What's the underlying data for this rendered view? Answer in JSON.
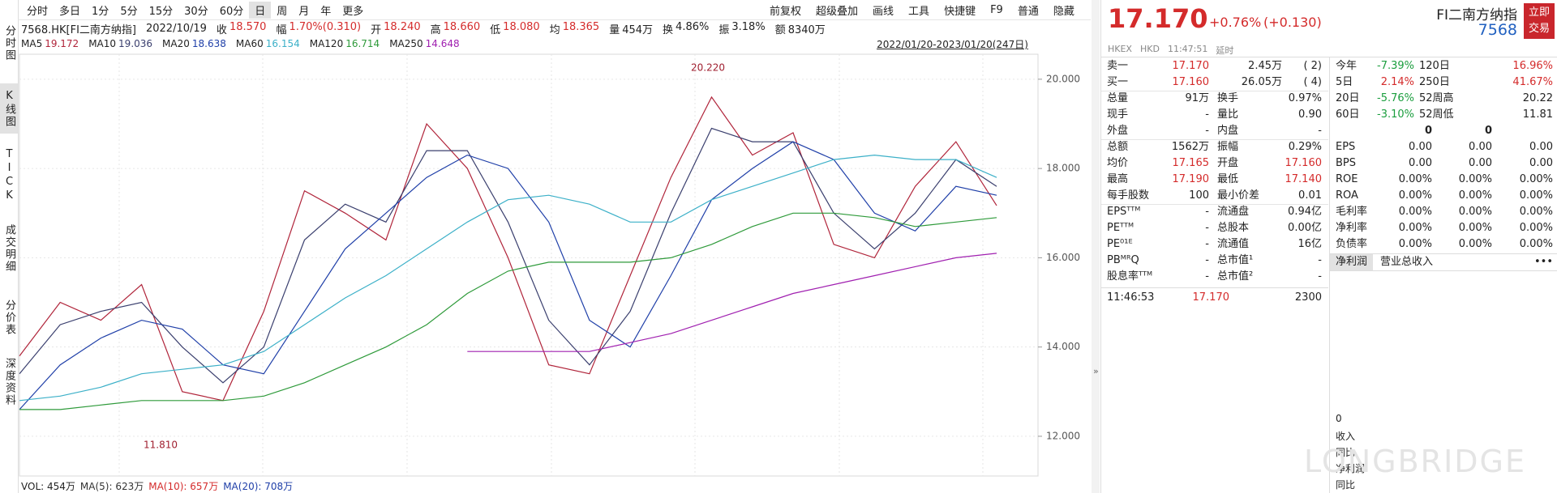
{
  "sidebar": [
    "分时图",
    "K线图",
    "TICK",
    "成交明细",
    "分价表",
    "深度资料"
  ],
  "toolbar": {
    "periods": [
      "分时",
      "多日",
      "1分",
      "5分",
      "15分",
      "30分",
      "60分",
      "日",
      "周",
      "月",
      "年",
      "更多"
    ],
    "tools": [
      "前复权",
      "超级叠加",
      "画线",
      "工具",
      "快捷键",
      "F9",
      "普通",
      "隐藏"
    ]
  },
  "info": {
    "symbol": "7568.HK[FI二南方纳指]",
    "date": "2022/10/19",
    "fields": [
      {
        "label": "收",
        "value": "18.570"
      },
      {
        "label": "幅",
        "value": "1.70%(0.310)"
      },
      {
        "label": "开",
        "value": "18.240"
      },
      {
        "label": "高",
        "value": "18.660"
      },
      {
        "label": "低",
        "value": "18.080"
      },
      {
        "label": "均",
        "value": "18.365"
      },
      {
        "label": "量",
        "value": "454万"
      },
      {
        "label": "换",
        "value": "4.86%"
      },
      {
        "label": "振",
        "value": "3.18%"
      },
      {
        "label": "额",
        "value": "8340万"
      }
    ]
  },
  "ma_values": [
    "19.172",
    "19.036",
    "18.638",
    "16.154",
    "16.714",
    "14.648"
  ],
  "range": "2022/01/20-2023/01/20(247日)",
  "chart_data": {
    "type": "line",
    "categories": [
      null,
      null,
      null,
      null,
      null,
      null,
      null,
      null,
      null,
      null,
      null,
      null,
      null,
      null,
      null,
      null,
      null,
      null,
      null,
      null,
      null,
      null,
      null,
      null,
      null
    ],
    "series": [
      {
        "name": "MA5",
        "color": "#b0243a",
        "values": [
          13.8,
          15.0,
          14.6,
          15.4,
          13.0,
          12.8,
          14.8,
          17.5,
          17.0,
          16.4,
          19.0,
          18.0,
          16.0,
          13.6,
          13.4,
          15.6,
          17.8,
          19.6,
          18.3,
          18.8,
          16.3,
          16.0,
          17.6,
          18.6,
          17.17
        ]
      },
      {
        "name": "MA10",
        "color": "#3a3f6e",
        "values": [
          13.4,
          14.5,
          14.8,
          15.0,
          14.0,
          13.2,
          14.0,
          16.4,
          17.2,
          16.8,
          18.4,
          18.4,
          16.8,
          14.6,
          13.6,
          14.8,
          17.0,
          18.9,
          18.6,
          18.6,
          17.0,
          16.2,
          17.0,
          18.2,
          17.6
        ]
      },
      {
        "name": "MA20",
        "color": "#1f3fa8",
        "values": [
          12.6,
          13.6,
          14.2,
          14.6,
          14.4,
          13.6,
          13.4,
          14.8,
          16.2,
          17.0,
          17.8,
          18.3,
          18.0,
          16.8,
          14.6,
          14.0,
          15.6,
          17.3,
          18.0,
          18.6,
          18.2,
          17.0,
          16.6,
          17.6,
          17.4
        ]
      },
      {
        "name": "MA60",
        "color": "#3cb0c8",
        "values": [
          12.8,
          12.9,
          13.1,
          13.4,
          13.5,
          13.6,
          13.9,
          14.5,
          15.1,
          15.6,
          16.2,
          16.8,
          17.3,
          17.4,
          17.2,
          16.8,
          16.8,
          17.3,
          17.6,
          17.9,
          18.2,
          18.3,
          18.2,
          18.2,
          17.8
        ]
      },
      {
        "name": "MA120",
        "color": "#2e9a3a",
        "values": [
          12.6,
          12.6,
          12.7,
          12.8,
          12.8,
          12.8,
          12.9,
          13.2,
          13.6,
          14.0,
          14.5,
          15.2,
          15.7,
          15.9,
          15.9,
          15.9,
          16.0,
          16.3,
          16.7,
          17.0,
          17.0,
          16.9,
          16.7,
          16.8,
          16.9
        ]
      },
      {
        "name": "MA250",
        "color": "#a020b0",
        "values": [
          null,
          null,
          null,
          null,
          null,
          null,
          null,
          null,
          null,
          null,
          null,
          13.9,
          13.9,
          13.9,
          13.9,
          14.1,
          14.3,
          14.6,
          14.9,
          15.2,
          15.4,
          15.6,
          15.8,
          16.0,
          16.1
        ]
      }
    ],
    "ylim": [
      11.11,
      20.56
    ],
    "yticks": [
      {
        "value": 12,
        "label": "12.000"
      },
      {
        "value": 14,
        "label": "14.000"
      },
      {
        "value": 16,
        "label": "16.000"
      },
      {
        "value": 18,
        "label": "18.000"
      },
      {
        "value": 20,
        "label": "20.000"
      }
    ],
    "grid": true,
    "annotations": [
      "20.220",
      "11.810"
    ]
  },
  "volume": [
    "VOL: 454万",
    "MA(5): 623万",
    "MA(10): 657万",
    "MA(20): 708万"
  ],
  "quote": {
    "price": "17.170",
    "change_pct": "+0.76%",
    "change": "(+0.130)",
    "name": "FI二南方纳指",
    "code": "7568",
    "trade_button": "立即交易",
    "meta": [
      "HKEX",
      "HKD",
      "11:47:51",
      "延时"
    ],
    "order_book": [
      [
        "卖一",
        "17.170",
        "2.45万",
        "( 2)"
      ],
      [
        "买一",
        "17.160",
        "26.05万",
        "( 4)"
      ]
    ],
    "stats": [
      [
        "总量",
        "91万",
        "换手",
        "0.97%"
      ],
      [
        "现手",
        "-",
        "量比",
        "0.90"
      ],
      [
        "外盘",
        "-",
        "内盘",
        "-"
      ],
      [
        "总额",
        "1562万",
        "振幅",
        "0.29%"
      ],
      [
        "均价",
        "17.165",
        "开盘",
        "17.160"
      ],
      [
        "最高",
        "17.190",
        "最低",
        "17.140"
      ],
      [
        "每手股数",
        "100",
        "最小价差",
        "0.01"
      ],
      [
        "EPSᵀᵀᴹ",
        "-",
        "流通盘",
        "0.94亿"
      ],
      [
        "PEᵀᵀᴹ",
        "-",
        "总股本",
        "0.00亿"
      ],
      [
        "PE⁰¹ᴱ",
        "-",
        "流通值",
        "16亿"
      ],
      [
        "PBᴹᴿQ",
        "-",
        "总市值¹",
        "-"
      ],
      [
        "股息率ᵀᵀᴹ",
        "-",
        "总市值²",
        "-"
      ]
    ],
    "last_trade": [
      "11:46:53",
      "17.170",
      "2300"
    ],
    "performance": [
      [
        "今年",
        "-7.39%",
        "120日",
        "16.96%"
      ],
      [
        "5日",
        "2.14%",
        "250日",
        "41.67%"
      ],
      [
        "20日",
        "-5.76%",
        "52周高",
        "20.22"
      ],
      [
        "60日",
        "-3.10%",
        "52周低",
        "11.81"
      ]
    ],
    "counts": [
      "0",
      "0"
    ],
    "fundamentals": [
      [
        "EPS",
        "0.00",
        "0.00",
        "0.00"
      ],
      [
        "BPS",
        "0.00",
        "0.00",
        "0.00"
      ],
      [
        "ROE",
        "0.00%",
        "0.00%",
        "0.00%"
      ],
      [
        "ROA",
        "0.00%",
        "0.00%",
        "0.00%"
      ],
      [
        "毛利率",
        "0.00%",
        "0.00%",
        "0.00%"
      ],
      [
        "净利率",
        "0.00%",
        "0.00%",
        "0.00%"
      ],
      [
        "负债率",
        "0.00%",
        "0.00%",
        "0.00%"
      ]
    ],
    "tabs": [
      "净利润",
      "营业总收入",
      "•••"
    ],
    "finance_list": [
      "0",
      "收入",
      "同比",
      "净利润",
      "同比"
    ],
    "watermark": "LONGBRIDGE"
  }
}
